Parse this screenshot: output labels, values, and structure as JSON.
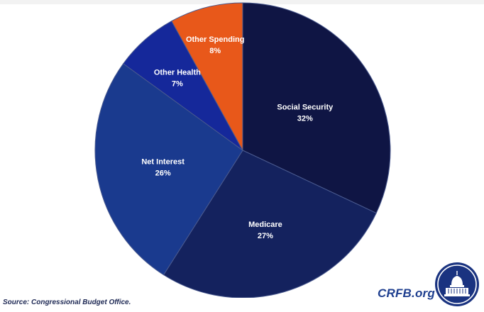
{
  "source_note": "Source: Congressional Budget Office.",
  "brand": {
    "name": "CRFB.org",
    "seal_icon": "capitol-dome-seal-icon"
  },
  "colors": {
    "social_security": "#0f1544",
    "medicare": "#14225e",
    "net_interest": "#1a3a8e",
    "other_health": "#15289a",
    "other_spending": "#e8581a",
    "brand": "#1f3f8f"
  },
  "chart_data": {
    "type": "pie",
    "slices": [
      {
        "label": "Social Security",
        "value": 32,
        "value_label": "32%",
        "color": "#0f1544"
      },
      {
        "label": "Medicare",
        "value": 27,
        "value_label": "27%",
        "color": "#14225e"
      },
      {
        "label": "Net Interest",
        "value": 26,
        "value_label": "26%",
        "color": "#1a3a8e"
      },
      {
        "label": "Other Health",
        "value": 7,
        "value_label": "7%",
        "color": "#15289a"
      },
      {
        "label": "Other Spending",
        "value": 8,
        "value_label": "8%",
        "color": "#e8581a"
      }
    ],
    "start": "12 o'clock",
    "direction": "clockwise",
    "legend": "none"
  }
}
